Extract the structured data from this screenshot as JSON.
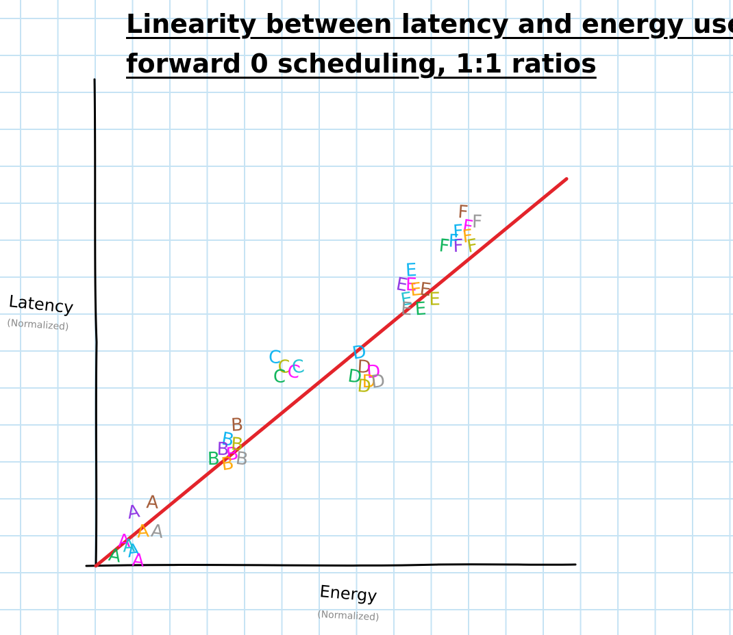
{
  "chart_data": {
    "type": "scatter",
    "title_lines": [
      "Linearity between latency and energy use,",
      "forward 0 scheduling, 1:1 ratios"
    ],
    "xlabel": "Energy",
    "xlabel_sub": "(Normalized)",
    "ylabel": "Latency",
    "ylabel_sub": "(Normalized)",
    "xlim": [
      0,
      1
    ],
    "ylim": [
      0,
      1
    ],
    "grid": true,
    "trend_line": {
      "color": "#e3242b",
      "x": [
        0.0,
        1.0
      ],
      "y": [
        0.0,
        0.8
      ]
    },
    "point_colors": [
      "#00b0f0",
      "#ff00ff",
      "#00b050",
      "#ffa500",
      "#a0522d",
      "#b5b500",
      "#8a2be2",
      "#909090",
      "#17becf"
    ],
    "clusters": [
      {
        "label": "A",
        "points": [
          {
            "x": 0.08,
            "y": 0.11,
            "c": 6
          },
          {
            "x": 0.12,
            "y": 0.13,
            "c": 4
          },
          {
            "x": 0.1,
            "y": 0.07,
            "c": 3
          },
          {
            "x": 0.13,
            "y": 0.07,
            "c": 7
          },
          {
            "x": 0.06,
            "y": 0.05,
            "c": 1
          },
          {
            "x": 0.08,
            "y": 0.03,
            "c": 0
          },
          {
            "x": 0.09,
            "y": 0.01,
            "c": 1
          },
          {
            "x": 0.07,
            "y": 0.04,
            "c": 8
          },
          {
            "x": 0.04,
            "y": 0.02,
            "c": 2
          }
        ]
      },
      {
        "label": "B",
        "points": [
          {
            "x": 0.3,
            "y": 0.29,
            "c": 4
          },
          {
            "x": 0.28,
            "y": 0.26,
            "c": 0
          },
          {
            "x": 0.27,
            "y": 0.24,
            "c": 6
          },
          {
            "x": 0.29,
            "y": 0.23,
            "c": 1
          },
          {
            "x": 0.31,
            "y": 0.22,
            "c": 7
          },
          {
            "x": 0.25,
            "y": 0.22,
            "c": 2
          },
          {
            "x": 0.28,
            "y": 0.21,
            "c": 3
          },
          {
            "x": 0.3,
            "y": 0.25,
            "c": 5
          }
        ]
      },
      {
        "label": "C",
        "points": [
          {
            "x": 0.38,
            "y": 0.43,
            "c": 0
          },
          {
            "x": 0.4,
            "y": 0.41,
            "c": 5
          },
          {
            "x": 0.42,
            "y": 0.4,
            "c": 1
          },
          {
            "x": 0.39,
            "y": 0.39,
            "c": 2
          },
          {
            "x": 0.43,
            "y": 0.41,
            "c": 8
          }
        ]
      },
      {
        "label": "D",
        "points": [
          {
            "x": 0.56,
            "y": 0.44,
            "c": 0
          },
          {
            "x": 0.57,
            "y": 0.41,
            "c": 4
          },
          {
            "x": 0.59,
            "y": 0.4,
            "c": 1
          },
          {
            "x": 0.55,
            "y": 0.39,
            "c": 2
          },
          {
            "x": 0.58,
            "y": 0.38,
            "c": 3
          },
          {
            "x": 0.6,
            "y": 0.38,
            "c": 7
          },
          {
            "x": 0.57,
            "y": 0.37,
            "c": 5
          }
        ]
      },
      {
        "label": "E",
        "points": [
          {
            "x": 0.67,
            "y": 0.61,
            "c": 0
          },
          {
            "x": 0.65,
            "y": 0.58,
            "c": 6
          },
          {
            "x": 0.67,
            "y": 0.58,
            "c": 1
          },
          {
            "x": 0.68,
            "y": 0.57,
            "c": 3
          },
          {
            "x": 0.7,
            "y": 0.57,
            "c": 4
          },
          {
            "x": 0.72,
            "y": 0.55,
            "c": 5
          },
          {
            "x": 0.66,
            "y": 0.55,
            "c": 8
          },
          {
            "x": 0.66,
            "y": 0.53,
            "c": 7
          },
          {
            "x": 0.69,
            "y": 0.53,
            "c": 2
          }
        ]
      },
      {
        "label": "F",
        "points": [
          {
            "x": 0.78,
            "y": 0.73,
            "c": 4
          },
          {
            "x": 0.77,
            "y": 0.69,
            "c": 0
          },
          {
            "x": 0.79,
            "y": 0.7,
            "c": 1
          },
          {
            "x": 0.81,
            "y": 0.71,
            "c": 7
          },
          {
            "x": 0.79,
            "y": 0.68,
            "c": 3
          },
          {
            "x": 0.74,
            "y": 0.66,
            "c": 2
          },
          {
            "x": 0.77,
            "y": 0.66,
            "c": 6
          },
          {
            "x": 0.8,
            "y": 0.66,
            "c": 5
          },
          {
            "x": 0.76,
            "y": 0.67,
            "c": 0
          }
        ]
      }
    ]
  }
}
